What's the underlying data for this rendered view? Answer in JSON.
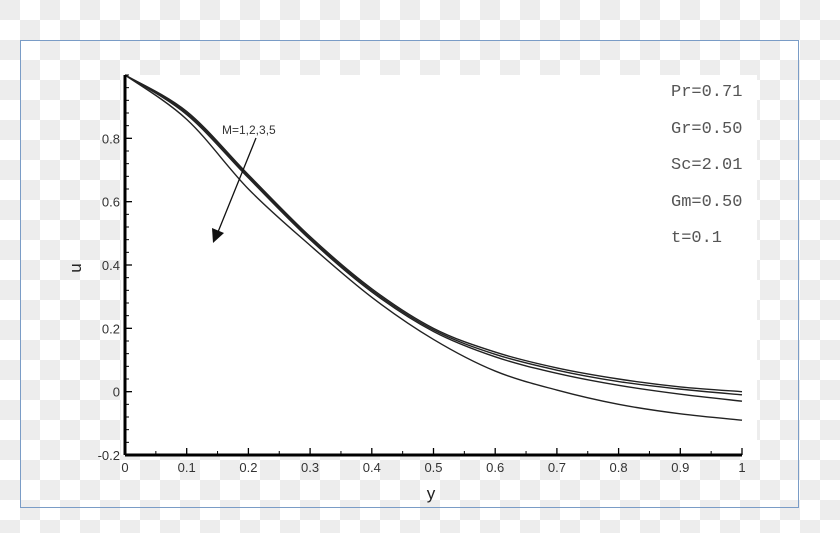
{
  "chart_data": {
    "type": "line",
    "title": "",
    "xlabel": "y",
    "ylabel": "u",
    "xlim": [
      0,
      1
    ],
    "ylim": [
      -0.2,
      1.0
    ],
    "grid": false,
    "x_ticks": [
      "0",
      "0.1",
      "0.2",
      "0.3",
      "0.4",
      "0.5",
      "0.6",
      "0.7",
      "0.8",
      "0.9",
      "1"
    ],
    "y_ticks": [
      "-0.2",
      "0",
      "0.2",
      "0.4",
      "0.6",
      "0.8"
    ],
    "x": [
      0,
      0.1,
      0.2,
      0.3,
      0.4,
      0.5,
      0.6,
      0.7,
      0.8,
      0.9,
      1.0
    ],
    "series": [
      {
        "name": "M=1",
        "values": [
          1.0,
          0.885,
          0.685,
          0.49,
          0.325,
          0.2,
          0.125,
          0.075,
          0.04,
          0.015,
          0.0
        ]
      },
      {
        "name": "M=2",
        "values": [
          1.0,
          0.88,
          0.68,
          0.485,
          0.32,
          0.195,
          0.118,
          0.068,
          0.032,
          0.008,
          -0.01
        ]
      },
      {
        "name": "M=3",
        "values": [
          1.0,
          0.875,
          0.675,
          0.48,
          0.315,
          0.19,
          0.11,
          0.058,
          0.02,
          -0.008,
          -0.03
        ]
      },
      {
        "name": "M=5",
        "values": [
          1.0,
          0.86,
          0.64,
          0.462,
          0.298,
          0.165,
          0.065,
          0.005,
          -0.04,
          -0.07,
          -0.09
        ]
      }
    ],
    "annotations": [
      {
        "text": "M=1,2,3,5",
        "type": "arrow",
        "direction": "increasing M downward"
      }
    ],
    "parameters": [
      "Pr=0.71",
      "Gr=0.50",
      "Sc=2.01",
      "Gm=0.50",
      "t=0.1"
    ]
  },
  "labels": {
    "xlabel": "y",
    "ylabel": "u",
    "annotation": "M=1,2,3,5",
    "params": [
      "Pr=0.71",
      "Gr=0.50",
      "Sc=2.01",
      "Gm=0.50",
      "t=0.1"
    ]
  }
}
